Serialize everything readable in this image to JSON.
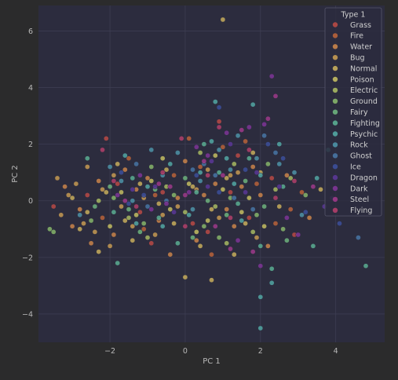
{
  "chart_data": {
    "type": "scatter",
    "title": "",
    "xlabel": "PC 1",
    "ylabel": "PC 2",
    "xlim": [
      -3.9,
      5.3
    ],
    "ylim": [
      -5.0,
      6.9
    ],
    "xticks": [
      -2,
      0,
      2,
      4
    ],
    "yticks": [
      -4,
      -2,
      0,
      2,
      4,
      6
    ],
    "grid": true,
    "legend": {
      "title": "Type 1",
      "placement": "top-right"
    },
    "colors": {
      "Grass": "#b84a45",
      "Fire": "#b8633a",
      "Water": "#c9844a",
      "Bug": "#c59a52",
      "Normal": "#c7ad5c",
      "Poison": "#c3bd62",
      "Electric": "#a7b862",
      "Ground": "#86b56a",
      "Fairy": "#6db37d",
      "Fighting": "#5aae92",
      "Psychic": "#52a7a3",
      "Rock": "#4d93a7",
      "Ghost": "#4876a4",
      "Ice": "#3c4f9a",
      "Dragon": "#5a3796",
      "Dark": "#7e3596",
      "Steel": "#9e3a8a",
      "Flying": "#b13f6a"
    },
    "series": [
      {
        "name": "Grass",
        "points": [
          [
            -3.5,
            -0.2
          ],
          [
            -2.1,
            2.2
          ],
          [
            -1.8,
            0.6
          ],
          [
            -1.2,
            -0.4
          ],
          [
            0.6,
            -1.1
          ],
          [
            0.9,
            2.8
          ],
          [
            1.2,
            0.3
          ],
          [
            2.3,
            0.8
          ],
          [
            -0.6,
            0.3
          ],
          [
            0.2,
            -0.8
          ],
          [
            1.7,
            -0.6
          ],
          [
            -2.6,
            0.2
          ],
          [
            1.4,
            1.6
          ],
          [
            2.9,
            -1.2
          ],
          [
            -0.9,
            -1.5
          ]
        ]
      },
      {
        "name": "Fire",
        "points": [
          [
            -1.5,
            1.5
          ],
          [
            -0.8,
            0.2
          ],
          [
            0.4,
            1.2
          ],
          [
            1.0,
            1.9
          ],
          [
            1.9,
            0.6
          ],
          [
            2.4,
            -0.8
          ],
          [
            3.1,
            0.3
          ],
          [
            -2.2,
            -0.6
          ],
          [
            0.7,
            -1.9
          ],
          [
            -0.3,
            0.9
          ],
          [
            1.6,
            2.1
          ],
          [
            2.8,
            -0.3
          ],
          [
            -1.1,
            -1.0
          ],
          [
            0.1,
            2.2
          ]
        ]
      },
      {
        "name": "Water",
        "points": [
          [
            -3.2,
            0.5
          ],
          [
            -2.8,
            -0.3
          ],
          [
            -2.3,
            0.7
          ],
          [
            -1.9,
            -1.2
          ],
          [
            -1.3,
            0.4
          ],
          [
            -0.7,
            -0.7
          ],
          [
            -0.2,
            0.1
          ],
          [
            0.3,
            -1.4
          ],
          [
            0.8,
            0.6
          ],
          [
            1.3,
            -0.9
          ],
          [
            1.8,
            1.2
          ],
          [
            2.2,
            -1.6
          ],
          [
            2.7,
            0.9
          ],
          [
            -2.5,
            -1.5
          ],
          [
            -1.6,
            1.1
          ],
          [
            0.5,
            0.2
          ],
          [
            1.1,
            -0.3
          ],
          [
            -0.4,
            -1.9
          ],
          [
            2.0,
            0.2
          ],
          [
            -3.0,
            -0.9
          ],
          [
            0.0,
            1.4
          ],
          [
            1.5,
            0.5
          ],
          [
            -1.0,
            0.8
          ],
          [
            3.3,
            -0.6
          ]
        ]
      },
      {
        "name": "Bug",
        "points": [
          [
            -3.4,
            0.8
          ],
          [
            -3.1,
            0.2
          ],
          [
            -2.7,
            -0.8
          ],
          [
            -2.2,
            0.4
          ],
          [
            -1.7,
            -0.2
          ],
          [
            -1.4,
            -0.9
          ],
          [
            -2.9,
            0.6
          ],
          [
            -2.4,
            -1.1
          ],
          [
            -1.9,
            0.9
          ],
          [
            -1.1,
            0.1
          ],
          [
            -0.6,
            -0.5
          ],
          [
            0.3,
            0.4
          ],
          [
            0.9,
            -0.6
          ],
          [
            1.4,
            1.0
          ],
          [
            -3.3,
            -0.5
          ],
          [
            -2.0,
            -1.6
          ],
          [
            -0.8,
            -1.2
          ],
          [
            0.6,
            1.1
          ],
          [
            1.9,
            -1.3
          ],
          [
            -2.6,
            1.2
          ],
          [
            -0.2,
            -0.2
          ],
          [
            1.2,
            0.9
          ]
        ]
      },
      {
        "name": "Normal",
        "points": [
          [
            -3.0,
            0.1
          ],
          [
            -2.6,
            -0.4
          ],
          [
            -2.1,
            0.3
          ],
          [
            -1.6,
            -0.7
          ],
          [
            -1.2,
            0.6
          ],
          [
            -0.7,
            -0.1
          ],
          [
            -0.3,
            -0.8
          ],
          [
            0.2,
            0.5
          ],
          [
            0.7,
            -0.3
          ],
          [
            1.1,
            0.8
          ],
          [
            1.6,
            -0.8
          ],
          [
            2.0,
            1.0
          ],
          [
            -2.8,
            -1.0
          ],
          [
            -1.8,
            1.3
          ],
          [
            -0.5,
            1.1
          ],
          [
            0.4,
            -1.6
          ],
          [
            1.3,
            -1.9
          ],
          [
            2.5,
            -0.2
          ],
          [
            3.6,
            0.4
          ],
          [
            0.0,
            -2.7
          ],
          [
            0.7,
            -2.8
          ],
          [
            1.0,
            6.4
          ],
          [
            -2.3,
            -1.8
          ],
          [
            1.8,
            1.7
          ],
          [
            -1.4,
            -1.4
          ]
        ]
      },
      {
        "name": "Poison",
        "points": [
          [
            -1.7,
            0.3
          ],
          [
            -1.3,
            -0.5
          ],
          [
            -0.9,
            0.7
          ],
          [
            -0.4,
            -0.3
          ],
          [
            0.1,
            0.6
          ],
          [
            0.6,
            -0.7
          ],
          [
            1.0,
            0.4
          ],
          [
            1.5,
            -0.4
          ],
          [
            -2.0,
            -0.9
          ],
          [
            0.8,
            1.6
          ],
          [
            2.1,
            -0.9
          ],
          [
            -0.6,
            1.5
          ],
          [
            1.7,
            0.1
          ],
          [
            0.3,
            -1.1
          ]
        ]
      },
      {
        "name": "Electric",
        "points": [
          [
            -1.5,
            -0.6
          ],
          [
            -0.5,
            0.5
          ],
          [
            0.4,
            1.7
          ],
          [
            0.8,
            -0.2
          ],
          [
            1.3,
            1.3
          ],
          [
            1.8,
            -1.1
          ],
          [
            2.4,
            0.4
          ],
          [
            -1.0,
            -1.3
          ],
          [
            0.0,
            -0.4
          ],
          [
            2.8,
            0.8
          ],
          [
            -2.3,
            0.0
          ],
          [
            1.1,
            -1.5
          ]
        ]
      },
      {
        "name": "Ground",
        "points": [
          [
            -3.6,
            -1.0
          ],
          [
            -2.5,
            -0.7
          ],
          [
            -1.9,
            0.1
          ],
          [
            -1.1,
            -0.8
          ],
          [
            -0.3,
            0.2
          ],
          [
            0.5,
            -0.9
          ],
          [
            1.2,
            0.1
          ],
          [
            1.9,
            -0.5
          ],
          [
            2.6,
            -1.0
          ],
          [
            3.2,
            0.2
          ],
          [
            -3.5,
            -1.1
          ],
          [
            0.9,
            -1.3
          ],
          [
            2.2,
            1.3
          ],
          [
            -0.9,
            1.2
          ]
        ]
      },
      {
        "name": "Fairy",
        "points": [
          [
            -2.0,
            0.5
          ],
          [
            -1.5,
            -0.3
          ],
          [
            -0.8,
            0.4
          ],
          [
            0.0,
            0.8
          ],
          [
            0.6,
            0.0
          ],
          [
            1.1,
            -0.5
          ],
          [
            1.6,
            0.7
          ],
          [
            2.1,
            -0.2
          ],
          [
            -1.2,
            -1.1
          ],
          [
            0.2,
            -1.3
          ],
          [
            -2.4,
            -0.2
          ],
          [
            2.7,
            -1.4
          ]
        ]
      },
      {
        "name": "Fighting",
        "points": [
          [
            -1.9,
            -0.4
          ],
          [
            -1.4,
            0.8
          ],
          [
            -0.7,
            -0.6
          ],
          [
            0.3,
            0.3
          ],
          [
            0.9,
            1.0
          ],
          [
            1.4,
            -0.1
          ],
          [
            2.0,
            -1.6
          ],
          [
            2.6,
            0.5
          ],
          [
            3.4,
            -1.6
          ],
          [
            -0.2,
            -1.5
          ],
          [
            1.7,
            1.5
          ],
          [
            0.5,
            2.0
          ],
          [
            -2.6,
            1.5
          ],
          [
            2.3,
            -2.4
          ],
          [
            4.8,
            -2.3
          ],
          [
            -1.8,
            -2.2
          ]
        ]
      },
      {
        "name": "Psychic",
        "points": [
          [
            -1.6,
            1.6
          ],
          [
            -1.0,
            0.5
          ],
          [
            -0.4,
            1.3
          ],
          [
            0.1,
            -0.5
          ],
          [
            0.7,
            2.1
          ],
          [
            1.1,
            1.5
          ],
          [
            1.5,
            -0.7
          ],
          [
            2.0,
            0.9
          ],
          [
            2.3,
            -2.9
          ],
          [
            2.0,
            -3.4
          ],
          [
            2.0,
            -4.5
          ],
          [
            0.8,
            3.5
          ],
          [
            1.8,
            3.4
          ],
          [
            -0.6,
            -0.9
          ],
          [
            0.4,
            1.0
          ],
          [
            2.5,
            2.0
          ],
          [
            3.8,
            1.8
          ],
          [
            3.5,
            0.8
          ],
          [
            -1.3,
            -0.8
          ],
          [
            1.3,
            0.6
          ]
        ]
      },
      {
        "name": "Rock",
        "points": [
          [
            -2.8,
            -0.5
          ],
          [
            -2.0,
            1.2
          ],
          [
            -1.4,
            0.0
          ],
          [
            -0.9,
            1.8
          ],
          [
            -0.2,
            1.7
          ],
          [
            0.4,
            0.7
          ],
          [
            0.9,
            1.8
          ],
          [
            1.4,
            2.3
          ],
          [
            1.9,
            1.5
          ],
          [
            2.5,
            1.3
          ],
          [
            3.1,
            -0.5
          ],
          [
            -0.6,
            0.9
          ],
          [
            0.2,
            -0.3
          ],
          [
            1.2,
            1.1
          ],
          [
            -1.7,
            0.7
          ],
          [
            2.9,
            1.0
          ]
        ]
      },
      {
        "name": "Ghost",
        "points": [
          [
            -1.3,
            1.3
          ],
          [
            -0.5,
            0.0
          ],
          [
            0.2,
            1.1
          ],
          [
            0.8,
            0.9
          ],
          [
            1.3,
            0.1
          ],
          [
            1.8,
            -0.3
          ],
          [
            2.4,
            1.7
          ],
          [
            -1.0,
            -0.2
          ],
          [
            0.5,
            1.3
          ],
          [
            4.6,
            -1.3
          ],
          [
            2.1,
            2.3
          ]
        ]
      },
      {
        "name": "Ice",
        "points": [
          [
            -1.7,
            1.0
          ],
          [
            -1.1,
            0.2
          ],
          [
            0.3,
            0.9
          ],
          [
            0.9,
            0.3
          ],
          [
            1.6,
            1.1
          ],
          [
            2.2,
            2.0
          ],
          [
            3.2,
            -0.4
          ],
          [
            4.1,
            -0.8
          ],
          [
            2.6,
            1.5
          ],
          [
            -1.5,
            -0.1
          ],
          [
            0.9,
            3.3
          ]
        ]
      },
      {
        "name": "Dragon",
        "points": [
          [
            -1.4,
            0.4
          ],
          [
            -0.3,
            -0.4
          ],
          [
            0.6,
            0.5
          ],
          [
            1.2,
            2.0
          ],
          [
            1.9,
            1.0
          ],
          [
            2.5,
            0.5
          ],
          [
            3.7,
            -0.2
          ],
          [
            0.7,
            1.4
          ],
          [
            -0.8,
            0.5
          ],
          [
            1.6,
            0.3
          ],
          [
            3.9,
            0.1
          ]
        ]
      },
      {
        "name": "Dark",
        "points": [
          [
            -1.8,
            0.2
          ],
          [
            -1.2,
            0.9
          ],
          [
            -0.5,
            -0.1
          ],
          [
            0.1,
            0.3
          ],
          [
            0.6,
            1.6
          ],
          [
            1.1,
            2.4
          ],
          [
            1.7,
            2.6
          ],
          [
            2.1,
            2.7
          ],
          [
            2.3,
            4.4
          ],
          [
            2.0,
            -2.3
          ],
          [
            -0.9,
            -0.3
          ],
          [
            1.4,
            -1.4
          ],
          [
            3.0,
            -1.2
          ],
          [
            0.3,
            1.9
          ],
          [
            2.7,
            -0.6
          ]
        ]
      },
      {
        "name": "Steel",
        "points": [
          [
            -1.6,
            0.0
          ],
          [
            -0.7,
            0.6
          ],
          [
            0.0,
            0.2
          ],
          [
            0.5,
            1.4
          ],
          [
            1.0,
            0.9
          ],
          [
            1.5,
            2.5
          ],
          [
            2.2,
            2.9
          ],
          [
            2.4,
            3.7
          ],
          [
            1.8,
            -1.8
          ],
          [
            -0.4,
            0.5
          ],
          [
            0.8,
            -0.9
          ],
          [
            3.4,
            0.5
          ],
          [
            1.2,
            -1.7
          ]
        ]
      },
      {
        "name": "Flying",
        "points": [
          [
            -1.9,
            0.7
          ],
          [
            -1.3,
            -0.2
          ],
          [
            -0.6,
            1.0
          ],
          [
            0.0,
            -0.9
          ],
          [
            0.6,
            0.9
          ],
          [
            1.2,
            -0.6
          ],
          [
            1.7,
            1.8
          ],
          [
            2.4,
            0.1
          ],
          [
            -2.2,
            1.8
          ],
          [
            0.9,
            2.6
          ],
          [
            2.9,
            0.7
          ],
          [
            -0.1,
            2.2
          ]
        ]
      }
    ]
  }
}
